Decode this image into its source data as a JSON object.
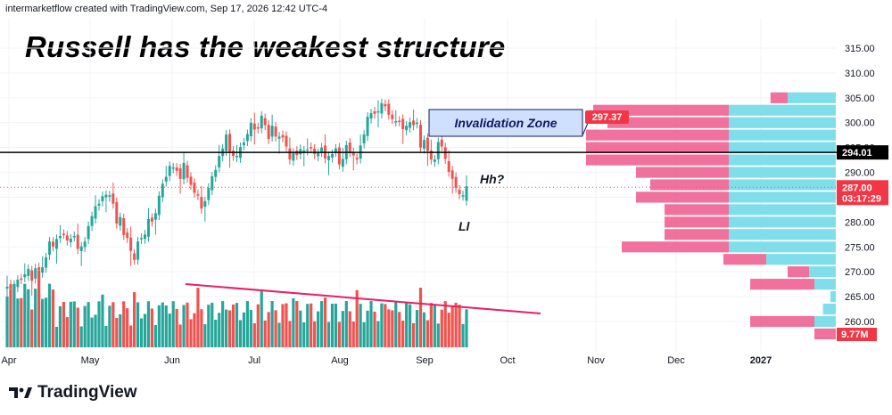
{
  "header": {
    "attribution": "intermarketflow created with TradingView.com, Sep 17, 2026 12:42 UTC-4"
  },
  "title": "Russell has the weakest structure",
  "brand": {
    "name": "TradingView",
    "logo_icon": "tradingview-logo-icon"
  },
  "colors": {
    "up": "#26a69a",
    "down": "#ef5350",
    "vp_up": "#80deea",
    "vp_down": "#f06292",
    "trend": "#e91e63",
    "zone_fill": "#cfe0ff",
    "zone_border": "#0d1b5e"
  },
  "chart_data": {
    "type": "candlestick",
    "title": "Russell has the weakest structure",
    "price_axis": {
      "ticks": [
        "315.00",
        "310.00",
        "305.00",
        "300.00",
        "295.00",
        "290.00",
        "285.00",
        "280.00",
        "275.00",
        "270.00",
        "265.00",
        "260.00"
      ],
      "range": [
        257,
        318
      ]
    },
    "time_axis": {
      "labels": [
        "Apr",
        "May",
        "Jun",
        "Jul",
        "Aug",
        "Sep",
        "Oct",
        "Nov",
        "Dec",
        "2027"
      ]
    },
    "price_series_close": [
      267,
      266.6,
      267.4,
      268.4,
      268.5,
      269.5,
      270.6,
      268.2,
      270.7,
      270.3,
      270.9,
      272.9,
      276.1,
      275.1,
      276.6,
      277.2,
      277.6,
      276.3,
      276.7,
      277.2,
      274.6,
      275.1,
      276.1,
      279.2,
      281.2,
      283.2,
      283.7,
      285.2,
      285.5,
      285.4,
      283.7,
      279.7,
      281,
      277.4,
      276.8,
      274.2,
      272.4,
      276.1,
      276.8,
      277.5,
      280.6,
      280.1,
      281.8,
      285.3,
      287.7,
      289.1,
      291.3,
      291,
      290.3,
      288.7,
      291.9,
      288.9,
      287.5,
      285.9,
      285.4,
      282.7,
      284.2,
      286.9,
      289.2,
      290.5,
      293.3,
      294.8,
      297.6,
      293.9,
      293.3,
      293.3,
      295.1,
      296,
      297.7,
      300,
      298.6,
      298.8,
      301.4,
      299.5,
      296.7,
      299.4,
      297.2,
      297.2,
      297,
      295.2,
      292.6,
      293.9,
      293.5,
      294.7,
      294.4,
      294.6,
      294.9,
      293.7,
      293.9,
      295,
      292.8,
      293.3,
      293.7,
      294.8,
      291.6,
      292.7,
      295.5,
      294.1,
      293.4,
      292.6,
      295.4,
      297.6,
      301.2,
      301.9,
      301.8,
      302.3,
      303.9,
      303.3,
      301.6,
      300.7,
      300.3,
      300.3,
      298.7,
      299.4,
      300.1,
      299.5,
      300,
      295,
      296.5,
      294.3,
      292.6,
      292.6,
      296.1,
      295.2,
      292.7,
      290.1,
      288.7,
      286.9,
      285.6,
      285.4,
      287.2
    ],
    "ohlc_note": "visible candles approximated; last candle open ~284.3, close ~287.0",
    "volume_profile": [
      {
        "price": 305,
        "up": 0.45,
        "down": 0.12
      },
      {
        "price": 302.5,
        "up": 1.0,
        "down": 0.95
      },
      {
        "price": 300,
        "up": 1.0,
        "down": 0.85
      },
      {
        "price": 297.5,
        "up": 1.0,
        "down": 1.0
      },
      {
        "price": 295,
        "up": 1.0,
        "down": 1.0
      },
      {
        "price": 292.5,
        "up": 1.0,
        "down": 1.0
      },
      {
        "price": 290,
        "up": 1.0,
        "down": 0.65
      },
      {
        "price": 287.5,
        "up": 1.0,
        "down": 0.55
      },
      {
        "price": 285,
        "up": 1.0,
        "down": 0.65
      },
      {
        "price": 282.5,
        "up": 1.0,
        "down": 0.45
      },
      {
        "price": 280,
        "up": 1.0,
        "down": 0.45
      },
      {
        "price": 277.5,
        "up": 1.0,
        "down": 0.45
      },
      {
        "price": 275,
        "up": 1.0,
        "down": 0.75
      },
      {
        "price": 272.5,
        "up": 0.65,
        "down": 0.3
      },
      {
        "price": 270,
        "up": 0.25,
        "down": 0.15
      },
      {
        "price": 267.5,
        "up": 0.2,
        "down": 0.45
      },
      {
        "price": 265,
        "up": 0.05,
        "down": 0.0
      },
      {
        "price": 262.5,
        "up": 0.12,
        "down": 0.0
      },
      {
        "price": 260,
        "up": 0.2,
        "down": 0.45
      },
      {
        "price": 257.5,
        "up": 0.0,
        "down": 0.15
      }
    ],
    "levels": [
      {
        "name": "horizontal-line",
        "price": 294.01,
        "label": "294.01"
      },
      {
        "name": "current-price",
        "price": 287.0,
        "label": "287.00",
        "countdown": "03:17:29"
      }
    ],
    "volume_tag": "9.77M",
    "annotations": {
      "zone": "Invalidation Zone",
      "zone_price": "297.37",
      "hh": "Hh?",
      "ll": "Ll"
    }
  }
}
